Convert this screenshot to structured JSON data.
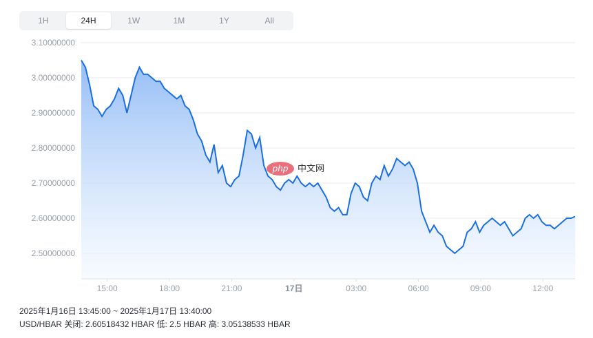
{
  "range_tabs": [
    {
      "label": "1H",
      "active": false
    },
    {
      "label": "24H",
      "active": true
    },
    {
      "label": "1W",
      "active": false
    },
    {
      "label": "1M",
      "active": false
    },
    {
      "label": "1Y",
      "active": false
    },
    {
      "label": "All",
      "active": false
    }
  ],
  "watermark": {
    "badge": "php",
    "text": "中文网"
  },
  "footer": {
    "period": "2025年1月16日 13:45:00 ~ 2025年1月17日 13:40:00",
    "pair": "USD/HBAR",
    "close_label": "关闭:",
    "close_value": "2.60518432 HBAR",
    "low_label": "低:",
    "low_value": "2.5 HBAR",
    "high_label": "高:",
    "high_value": "3.05138533 HBAR"
  },
  "colors": {
    "line": "#1a6fe0",
    "fill_top": "#8fbaf6",
    "fill_bottom": "#f3f8ff",
    "grid": "#e8eaed",
    "watermark_badge": "#e8707c"
  },
  "chart_data": {
    "type": "area",
    "x_tick_labels": [
      "15:00",
      "18:00",
      "21:00",
      "17日",
      "03:00",
      "06:00",
      "09:00",
      "12:00"
    ],
    "y_tick_labels": [
      "3.10000000",
      "3.00000000",
      "2.90000000",
      "2.80000000",
      "2.70000000",
      "2.60000000",
      "2.50000000"
    ],
    "ylim": [
      2.47,
      3.1
    ],
    "grid": true,
    "x_hours": [
      0,
      0.2,
      0.4,
      0.6,
      0.8,
      1.0,
      1.2,
      1.4,
      1.6,
      1.8,
      2.0,
      2.2,
      2.4,
      2.6,
      2.8,
      3.0,
      3.2,
      3.4,
      3.6,
      3.8,
      4.0,
      4.2,
      4.4,
      4.6,
      4.8,
      5.0,
      5.2,
      5.4,
      5.6,
      5.8,
      6.0,
      6.2,
      6.4,
      6.6,
      6.8,
      7.0,
      7.2,
      7.4,
      7.6,
      7.8,
      8.0,
      8.2,
      8.4,
      8.6,
      8.8,
      9.0,
      9.2,
      9.4,
      9.6,
      9.8,
      10.0,
      10.2,
      10.4,
      10.6,
      10.8,
      11.0,
      11.2,
      11.4,
      11.6,
      11.8,
      12.0,
      12.2,
      12.4,
      12.6,
      12.8,
      13.0,
      13.2,
      13.4,
      13.6,
      13.8,
      14.0,
      14.2,
      14.4,
      14.6,
      14.8,
      15.0,
      15.2,
      15.4,
      15.6,
      15.8,
      16.0,
      16.2,
      16.4,
      16.6,
      16.8,
      17.0,
      17.2,
      17.4,
      17.6,
      17.8,
      18.0,
      18.2,
      18.4,
      18.6,
      18.8,
      19.0,
      19.2,
      19.4,
      19.6,
      19.8,
      20.0,
      20.2,
      20.4,
      20.6,
      20.8,
      21.0,
      21.2,
      21.4,
      21.6,
      21.8,
      22.0,
      22.2,
      22.4,
      22.6,
      22.8,
      23.0,
      23.2,
      23.4,
      23.6,
      23.8
    ],
    "values": [
      3.05,
      3.03,
      2.98,
      2.92,
      2.91,
      2.89,
      2.91,
      2.92,
      2.94,
      2.97,
      2.95,
      2.9,
      2.95,
      3.0,
      3.03,
      3.01,
      3.01,
      3.0,
      2.99,
      2.99,
      2.97,
      2.96,
      2.95,
      2.94,
      2.95,
      2.92,
      2.91,
      2.88,
      2.84,
      2.82,
      2.78,
      2.76,
      2.81,
      2.73,
      2.75,
      2.7,
      2.69,
      2.71,
      2.72,
      2.78,
      2.85,
      2.84,
      2.8,
      2.83,
      2.75,
      2.72,
      2.71,
      2.69,
      2.68,
      2.7,
      2.71,
      2.7,
      2.72,
      2.7,
      2.69,
      2.7,
      2.69,
      2.7,
      2.68,
      2.66,
      2.63,
      2.62,
      2.63,
      2.61,
      2.61,
      2.67,
      2.7,
      2.69,
      2.66,
      2.65,
      2.7,
      2.72,
      2.71,
      2.75,
      2.72,
      2.74,
      2.77,
      2.76,
      2.75,
      2.76,
      2.74,
      2.7,
      2.62,
      2.59,
      2.56,
      2.58,
      2.56,
      2.55,
      2.52,
      2.51,
      2.5,
      2.51,
      2.52,
      2.56,
      2.57,
      2.59,
      2.56,
      2.58,
      2.59,
      2.6,
      2.59,
      2.58,
      2.59,
      2.57,
      2.55,
      2.56,
      2.57,
      2.6,
      2.61,
      2.6,
      2.61,
      2.59,
      2.58,
      2.58,
      2.57,
      2.58,
      2.59,
      2.6,
      2.6,
      2.605
    ]
  }
}
